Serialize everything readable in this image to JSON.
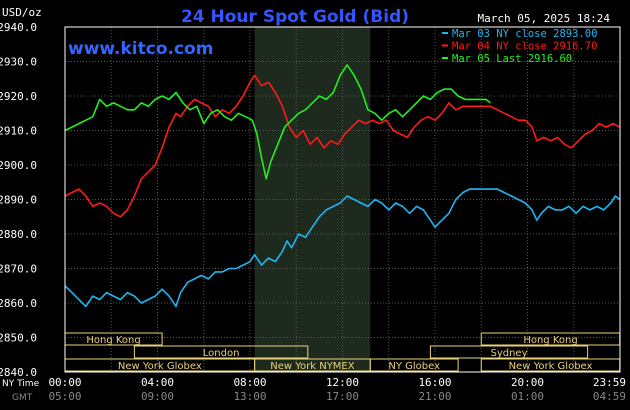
{
  "chart_data": {
    "type": "line",
    "title": "24 Hour Spot Gold (Bid)",
    "watermark": "www.kitco.com",
    "date_label": "March 05, 2025 18:24",
    "units_label": "USD/oz",
    "y_ticks": [
      "2940.0",
      "2930.0",
      "2920.0",
      "2910.0",
      "2900.0",
      "2890.0",
      "2880.0",
      "2870.0",
      "2860.0",
      "2850.0",
      "2840.0"
    ],
    "ylim": [
      2840,
      2940
    ],
    "xlim": [
      0,
      24
    ],
    "grid": true,
    "x_ticks_ny": [
      "00:00",
      "04:00",
      "08:00",
      "12:00",
      "16:00",
      "20:00",
      "23:59"
    ],
    "x_ticks_gmt": [
      "05:00",
      "09:00",
      "13:00",
      "17:00",
      "21:00",
      "01:00",
      "04:59"
    ],
    "x_row_labels": {
      "ny": "NY Time",
      "gmt": "GMT"
    },
    "nymex_shade": [
      8.2,
      13.2
    ],
    "sessions": [
      {
        "label": "Hong Kong",
        "start": 0.0,
        "end": 4.2,
        "row": 0
      },
      {
        "label": "Hong Kong",
        "start": 18.0,
        "end": 23.99,
        "row": 0
      },
      {
        "label": "London",
        "start": 3.0,
        "end": 10.5,
        "row": 1
      },
      {
        "label": "Sydney",
        "start": 15.8,
        "end": 22.6,
        "row": 1
      },
      {
        "label": "New York Globex",
        "start": 0.0,
        "end": 8.2,
        "row": 2
      },
      {
        "label": "New York NYMEX",
        "start": 8.2,
        "end": 13.2,
        "row": 2
      },
      {
        "label": "NY Globex",
        "start": 13.2,
        "end": 17.0,
        "row": 2
      },
      {
        "label": "New York Globex",
        "start": 18.0,
        "end": 23.99,
        "row": 2
      }
    ],
    "legend_position": "top-right",
    "series": [
      {
        "name": "Mar 03 NY close 2893.00",
        "color": "#1eb6f0",
        "points": [
          [
            0,
            2865
          ],
          [
            0.3,
            2863
          ],
          [
            0.6,
            2861
          ],
          [
            0.9,
            2859
          ],
          [
            1.2,
            2862
          ],
          [
            1.5,
            2861
          ],
          [
            1.8,
            2863
          ],
          [
            2.1,
            2862
          ],
          [
            2.4,
            2861
          ],
          [
            2.7,
            2863
          ],
          [
            3.0,
            2862
          ],
          [
            3.3,
            2860
          ],
          [
            3.6,
            2861
          ],
          [
            3.9,
            2862
          ],
          [
            4.2,
            2864
          ],
          [
            4.5,
            2862
          ],
          [
            4.8,
            2859
          ],
          [
            5.0,
            2863
          ],
          [
            5.3,
            2866
          ],
          [
            5.6,
            2867
          ],
          [
            5.9,
            2868
          ],
          [
            6.2,
            2867
          ],
          [
            6.5,
            2869
          ],
          [
            6.8,
            2869
          ],
          [
            7.1,
            2870
          ],
          [
            7.4,
            2870
          ],
          [
            7.7,
            2871
          ],
          [
            8.0,
            2872
          ],
          [
            8.2,
            2874
          ],
          [
            8.5,
            2871
          ],
          [
            8.8,
            2873
          ],
          [
            9.1,
            2872
          ],
          [
            9.4,
            2875
          ],
          [
            9.6,
            2878
          ],
          [
            9.8,
            2876
          ],
          [
            10.1,
            2880
          ],
          [
            10.4,
            2879
          ],
          [
            10.7,
            2882
          ],
          [
            11.0,
            2885
          ],
          [
            11.3,
            2887
          ],
          [
            11.6,
            2888
          ],
          [
            11.9,
            2889
          ],
          [
            12.2,
            2891
          ],
          [
            12.5,
            2890
          ],
          [
            12.8,
            2889
          ],
          [
            13.1,
            2888
          ],
          [
            13.4,
            2890
          ],
          [
            13.7,
            2889
          ],
          [
            14.0,
            2887
          ],
          [
            14.3,
            2889
          ],
          [
            14.6,
            2888
          ],
          [
            14.9,
            2886
          ],
          [
            15.2,
            2888
          ],
          [
            15.5,
            2887
          ],
          [
            15.8,
            2884
          ],
          [
            16.0,
            2882
          ],
          [
            16.3,
            2884
          ],
          [
            16.6,
            2886
          ],
          [
            16.9,
            2890
          ],
          [
            17.2,
            2892
          ],
          [
            17.5,
            2893
          ],
          [
            17.8,
            2893
          ],
          [
            18.1,
            2893
          ],
          [
            18.4,
            2893
          ],
          [
            18.7,
            2893
          ],
          [
            19.0,
            2892
          ],
          [
            19.3,
            2891
          ],
          [
            19.6,
            2890
          ],
          [
            19.9,
            2889
          ],
          [
            20.2,
            2887
          ],
          [
            20.4,
            2884
          ],
          [
            20.6,
            2886
          ],
          [
            20.9,
            2888
          ],
          [
            21.2,
            2887
          ],
          [
            21.5,
            2887
          ],
          [
            21.8,
            2888
          ],
          [
            22.1,
            2886
          ],
          [
            22.4,
            2888
          ],
          [
            22.7,
            2887
          ],
          [
            23.0,
            2888
          ],
          [
            23.3,
            2887
          ],
          [
            23.6,
            2889
          ],
          [
            23.8,
            2891
          ],
          [
            23.99,
            2890
          ]
        ]
      },
      {
        "name": "Mar 04 NY close 2916.70",
        "color": "#ff1a1a",
        "points": [
          [
            0,
            2891
          ],
          [
            0.3,
            2892
          ],
          [
            0.6,
            2893
          ],
          [
            0.9,
            2891
          ],
          [
            1.2,
            2888
          ],
          [
            1.5,
            2889
          ],
          [
            1.8,
            2888
          ],
          [
            2.1,
            2886
          ],
          [
            2.4,
            2885
          ],
          [
            2.7,
            2887
          ],
          [
            3.0,
            2891
          ],
          [
            3.3,
            2896
          ],
          [
            3.6,
            2898
          ],
          [
            3.9,
            2900
          ],
          [
            4.2,
            2905
          ],
          [
            4.5,
            2911
          ],
          [
            4.8,
            2915
          ],
          [
            5.0,
            2914
          ],
          [
            5.3,
            2917
          ],
          [
            5.6,
            2919
          ],
          [
            5.9,
            2918
          ],
          [
            6.2,
            2917
          ],
          [
            6.5,
            2914
          ],
          [
            6.8,
            2916
          ],
          [
            7.1,
            2915
          ],
          [
            7.4,
            2917
          ],
          [
            7.7,
            2920
          ],
          [
            8.0,
            2924
          ],
          [
            8.2,
            2926
          ],
          [
            8.5,
            2923
          ],
          [
            8.8,
            2924
          ],
          [
            9.1,
            2921
          ],
          [
            9.4,
            2917
          ],
          [
            9.7,
            2911
          ],
          [
            10.0,
            2908
          ],
          [
            10.3,
            2910
          ],
          [
            10.6,
            2906
          ],
          [
            10.9,
            2908
          ],
          [
            11.2,
            2905
          ],
          [
            11.5,
            2907
          ],
          [
            11.8,
            2906
          ],
          [
            12.1,
            2909
          ],
          [
            12.4,
            2911
          ],
          [
            12.7,
            2913
          ],
          [
            13.0,
            2912
          ],
          [
            13.3,
            2913
          ],
          [
            13.6,
            2912
          ],
          [
            13.9,
            2913
          ],
          [
            14.2,
            2910
          ],
          [
            14.5,
            2909
          ],
          [
            14.8,
            2908
          ],
          [
            15.1,
            2911
          ],
          [
            15.4,
            2913
          ],
          [
            15.7,
            2914
          ],
          [
            16.0,
            2913
          ],
          [
            16.3,
            2915
          ],
          [
            16.6,
            2918
          ],
          [
            16.9,
            2916
          ],
          [
            17.2,
            2917
          ],
          [
            17.5,
            2917
          ],
          [
            17.8,
            2917
          ],
          [
            18.1,
            2917
          ],
          [
            18.4,
            2917
          ],
          [
            18.7,
            2916
          ],
          [
            19.0,
            2915
          ],
          [
            19.3,
            2914
          ],
          [
            19.6,
            2913
          ],
          [
            19.9,
            2913
          ],
          [
            20.2,
            2911
          ],
          [
            20.4,
            2907
          ],
          [
            20.7,
            2908
          ],
          [
            21.0,
            2907
          ],
          [
            21.3,
            2908
          ],
          [
            21.6,
            2906
          ],
          [
            21.9,
            2905
          ],
          [
            22.2,
            2907
          ],
          [
            22.5,
            2909
          ],
          [
            22.8,
            2910
          ],
          [
            23.1,
            2912
          ],
          [
            23.4,
            2911
          ],
          [
            23.7,
            2912
          ],
          [
            23.99,
            2911
          ]
        ]
      },
      {
        "name": "Mar 05 Last 2916.60",
        "color": "#22ee22",
        "points": [
          [
            0,
            2910
          ],
          [
            0.3,
            2911
          ],
          [
            0.6,
            2912
          ],
          [
            0.9,
            2913
          ],
          [
            1.2,
            2914
          ],
          [
            1.5,
            2919
          ],
          [
            1.8,
            2917
          ],
          [
            2.1,
            2918
          ],
          [
            2.4,
            2917
          ],
          [
            2.7,
            2916
          ],
          [
            3.0,
            2916
          ],
          [
            3.3,
            2918
          ],
          [
            3.6,
            2917
          ],
          [
            3.9,
            2919
          ],
          [
            4.2,
            2920
          ],
          [
            4.5,
            2919
          ],
          [
            4.8,
            2921
          ],
          [
            5.1,
            2918
          ],
          [
            5.4,
            2916
          ],
          [
            5.7,
            2917
          ],
          [
            6.0,
            2912
          ],
          [
            6.3,
            2915
          ],
          [
            6.6,
            2916
          ],
          [
            6.9,
            2914
          ],
          [
            7.2,
            2913
          ],
          [
            7.5,
            2915
          ],
          [
            7.8,
            2914
          ],
          [
            8.1,
            2913
          ],
          [
            8.3,
            2909
          ],
          [
            8.5,
            2902
          ],
          [
            8.7,
            2896
          ],
          [
            8.9,
            2901
          ],
          [
            9.2,
            2906
          ],
          [
            9.5,
            2911
          ],
          [
            9.8,
            2913
          ],
          [
            10.1,
            2915
          ],
          [
            10.4,
            2916
          ],
          [
            10.7,
            2918
          ],
          [
            11.0,
            2920
          ],
          [
            11.3,
            2919
          ],
          [
            11.6,
            2921
          ],
          [
            11.9,
            2926
          ],
          [
            12.2,
            2929
          ],
          [
            12.5,
            2926
          ],
          [
            12.8,
            2922
          ],
          [
            13.1,
            2916
          ],
          [
            13.4,
            2915
          ],
          [
            13.7,
            2913
          ],
          [
            14.0,
            2915
          ],
          [
            14.3,
            2916
          ],
          [
            14.6,
            2914
          ],
          [
            14.9,
            2916
          ],
          [
            15.2,
            2918
          ],
          [
            15.5,
            2920
          ],
          [
            15.8,
            2919
          ],
          [
            16.1,
            2921
          ],
          [
            16.4,
            2922
          ],
          [
            16.7,
            2922
          ],
          [
            17.0,
            2920
          ],
          [
            17.3,
            2919
          ],
          [
            17.6,
            2919
          ],
          [
            17.9,
            2919
          ],
          [
            18.2,
            2919
          ],
          [
            18.4,
            2918
          ]
        ]
      }
    ]
  }
}
